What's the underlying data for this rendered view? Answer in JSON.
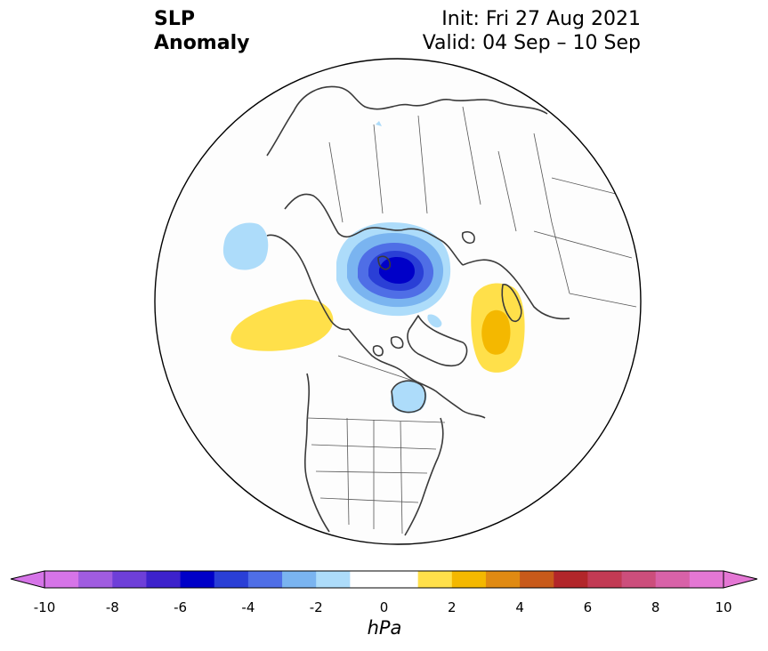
{
  "title": {
    "variable": "SLP",
    "subtitle": "Anomaly",
    "init": "Init: Fri 27 Aug 2021",
    "valid": "Valid: 04 Sep – 10 Sep"
  },
  "map": {
    "projection": "north-polar-stereographic",
    "boundary": "circle",
    "features": [
      {
        "name": "negative-anomaly-arctic",
        "label": "low centered near north pole",
        "min_hpa": -6
      },
      {
        "name": "negative-anomaly-hudson-bay",
        "label": "weak low over Hudson Bay",
        "min_hpa": -2
      },
      {
        "name": "negative-anomaly-north-pacific",
        "label": "weak low over north Pacific",
        "min_hpa": -2
      },
      {
        "name": "positive-anomaly-gulf-of-alaska",
        "label": "high over Gulf of Alaska",
        "max_hpa": 2
      },
      {
        "name": "positive-anomaly-north-atlantic",
        "label": "high over north Atlantic / Scandinavia",
        "max_hpa": 3
      }
    ]
  },
  "colorbar": {
    "unit_label": "hPa",
    "range": [
      -10,
      10
    ],
    "extend": "both",
    "ticks": [
      "-10",
      "-8",
      "-6",
      "-4",
      "-2",
      "0",
      "2",
      "4",
      "6",
      "8",
      "10"
    ],
    "colors": [
      "#d674e8",
      "#a05ce0",
      "#6e3fd8",
      "#3d22cc",
      "#0000c8",
      "#2a3fd6",
      "#4f6ee6",
      "#7ab4f0",
      "#addcfa",
      "#ffffff",
      "#ffffff",
      "#ffe04a",
      "#f4b800",
      "#e08a12",
      "#c85a1a",
      "#b2262a",
      "#c23a54",
      "#cc4e7c",
      "#d862a8",
      "#e477d4"
    ],
    "min_extend_color": "#d674e8",
    "max_extend_color": "#e477d4"
  }
}
